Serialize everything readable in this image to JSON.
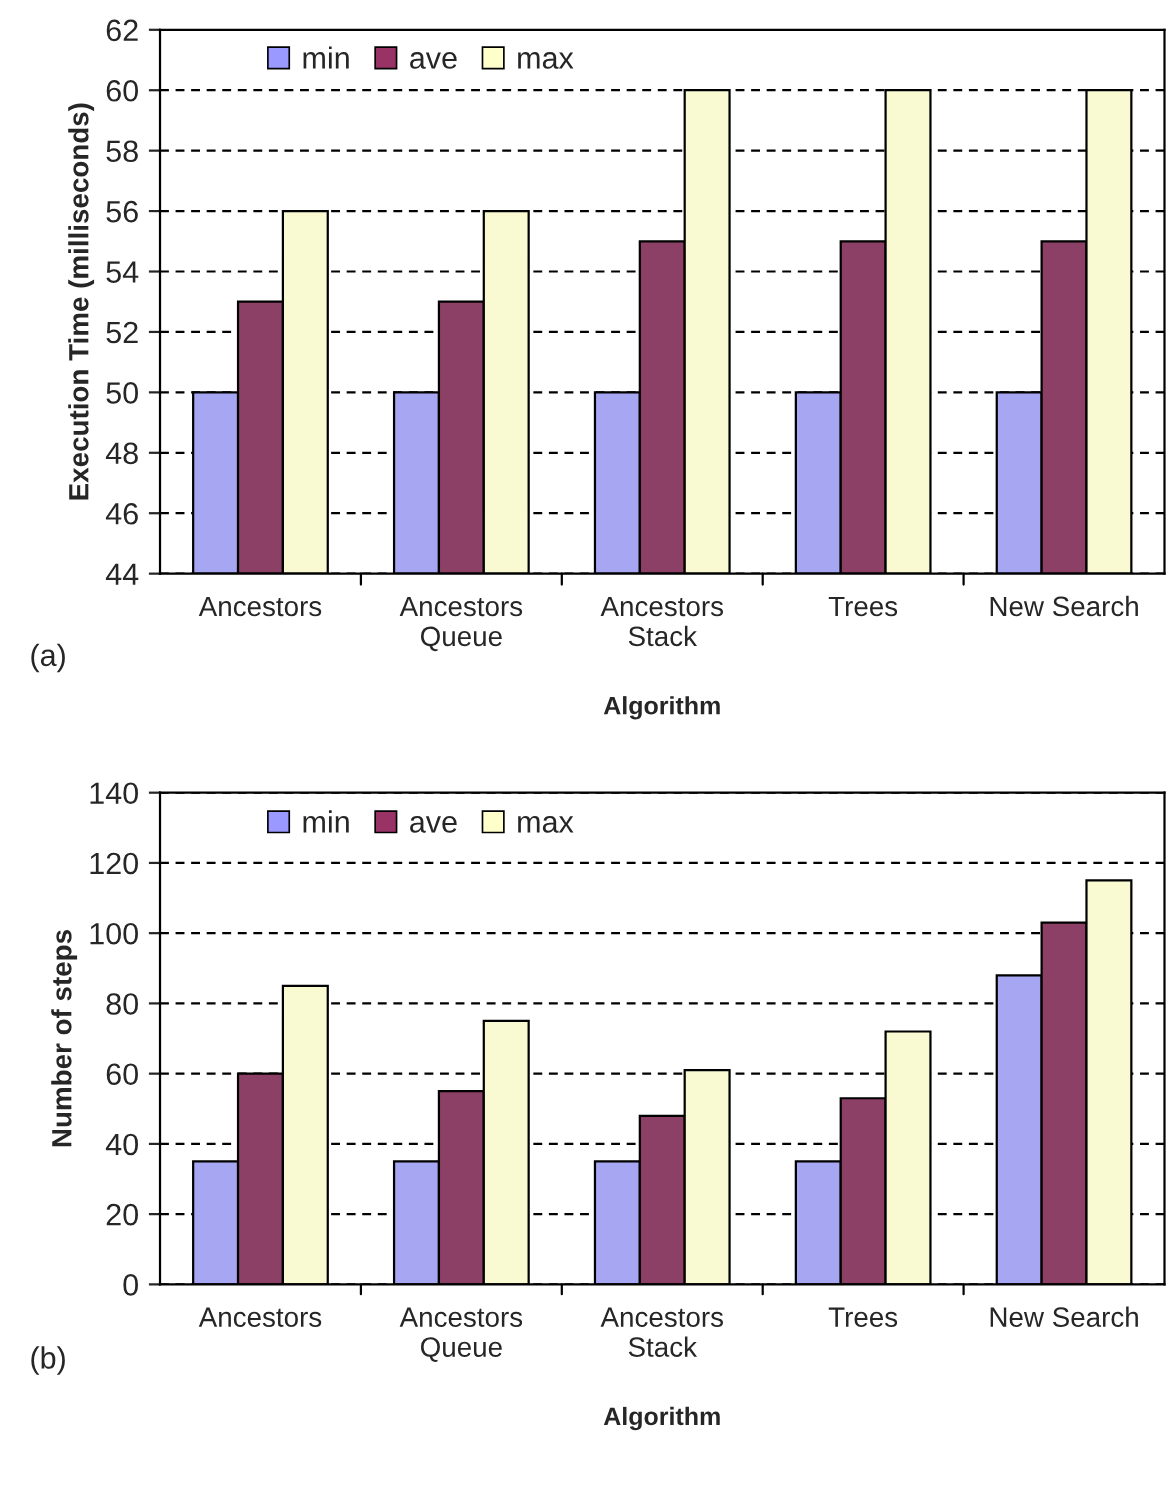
{
  "chart_data": [
    {
      "type": "bar",
      "xlabel": "Algorithm",
      "ylabel": "Execution Time (milliseconds)",
      "annotations": [
        "(a)"
      ],
      "categories": [
        "Ancestors",
        "Ancestors\nQueue",
        "Ancestors\nStack",
        "Trees",
        "New Search"
      ],
      "series": [
        {
          "name": "min",
          "color": "#9999ff",
          "values": [
            50,
            50,
            50,
            50,
            50
          ]
        },
        {
          "name": "ave",
          "color": "#993366",
          "values": [
            53,
            53,
            55,
            55,
            55
          ]
        },
        {
          "name": "max",
          "color": "#ffffcc",
          "values": [
            56,
            56,
            60,
            60,
            60
          ]
        }
      ],
      "ylim": [
        44,
        62
      ],
      "yticks": [
        44,
        46,
        48,
        50,
        52,
        54,
        56,
        58,
        60,
        62
      ],
      "grid": "y",
      "legend": "top left"
    },
    {
      "type": "bar",
      "xlabel": "Algorithm",
      "ylabel": "Number of steps",
      "annotations": [
        "(b)"
      ],
      "categories": [
        "Ancestors",
        "Ancestors\nQueue",
        "Ancestors\nStack",
        "Trees",
        "New Search"
      ],
      "series": [
        {
          "name": "min",
          "color": "#9999ff",
          "values": [
            35,
            35,
            35,
            35,
            88
          ]
        },
        {
          "name": "ave",
          "color": "#993366",
          "values": [
            60,
            55,
            48,
            53,
            103
          ]
        },
        {
          "name": "max",
          "color": "#ffffcc",
          "values": [
            85,
            75,
            61,
            72,
            115
          ]
        }
      ],
      "ylim": [
        0,
        140
      ],
      "yticks": [
        0,
        20,
        40,
        60,
        80,
        100,
        120,
        140
      ],
      "grid": "y",
      "legend": "top left"
    }
  ]
}
